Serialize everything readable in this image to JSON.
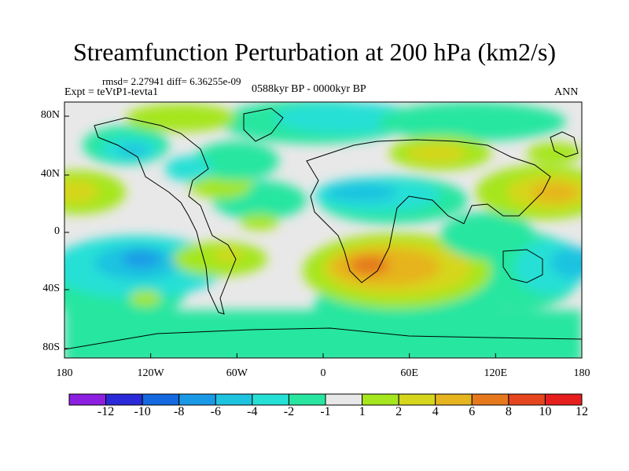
{
  "title": "Streamfunction Perturbation at 200 hPa (km2/s)",
  "stats_line": "rmsd= 2.27941 diff= 6.36255e-09",
  "expt_line": "Expt = teVtP1-tevta1",
  "period_line": "0588kyr BP - 0000kyr BP",
  "season": "ANN",
  "y_ticks": [
    "80N",
    "40N",
    "0",
    "40S",
    "80S"
  ],
  "x_ticks": [
    "180",
    "120W",
    "60W",
    "0",
    "60E",
    "120E",
    "180"
  ],
  "colorbar": {
    "labels": [
      "-12",
      "-10",
      "-8",
      "-6",
      "-4",
      "-2",
      "-1",
      "1",
      "2",
      "4",
      "6",
      "8",
      "10",
      "12"
    ],
    "colors": [
      "#8c1fe0",
      "#2a2ad8",
      "#1468e0",
      "#1a9ae6",
      "#1ec3e0",
      "#26e0d6",
      "#28e6a0",
      "#e8e8e8",
      "#a6e61e",
      "#d6d61e",
      "#e6b41e",
      "#e6781e",
      "#e6461e",
      "#e61e1e"
    ]
  }
}
